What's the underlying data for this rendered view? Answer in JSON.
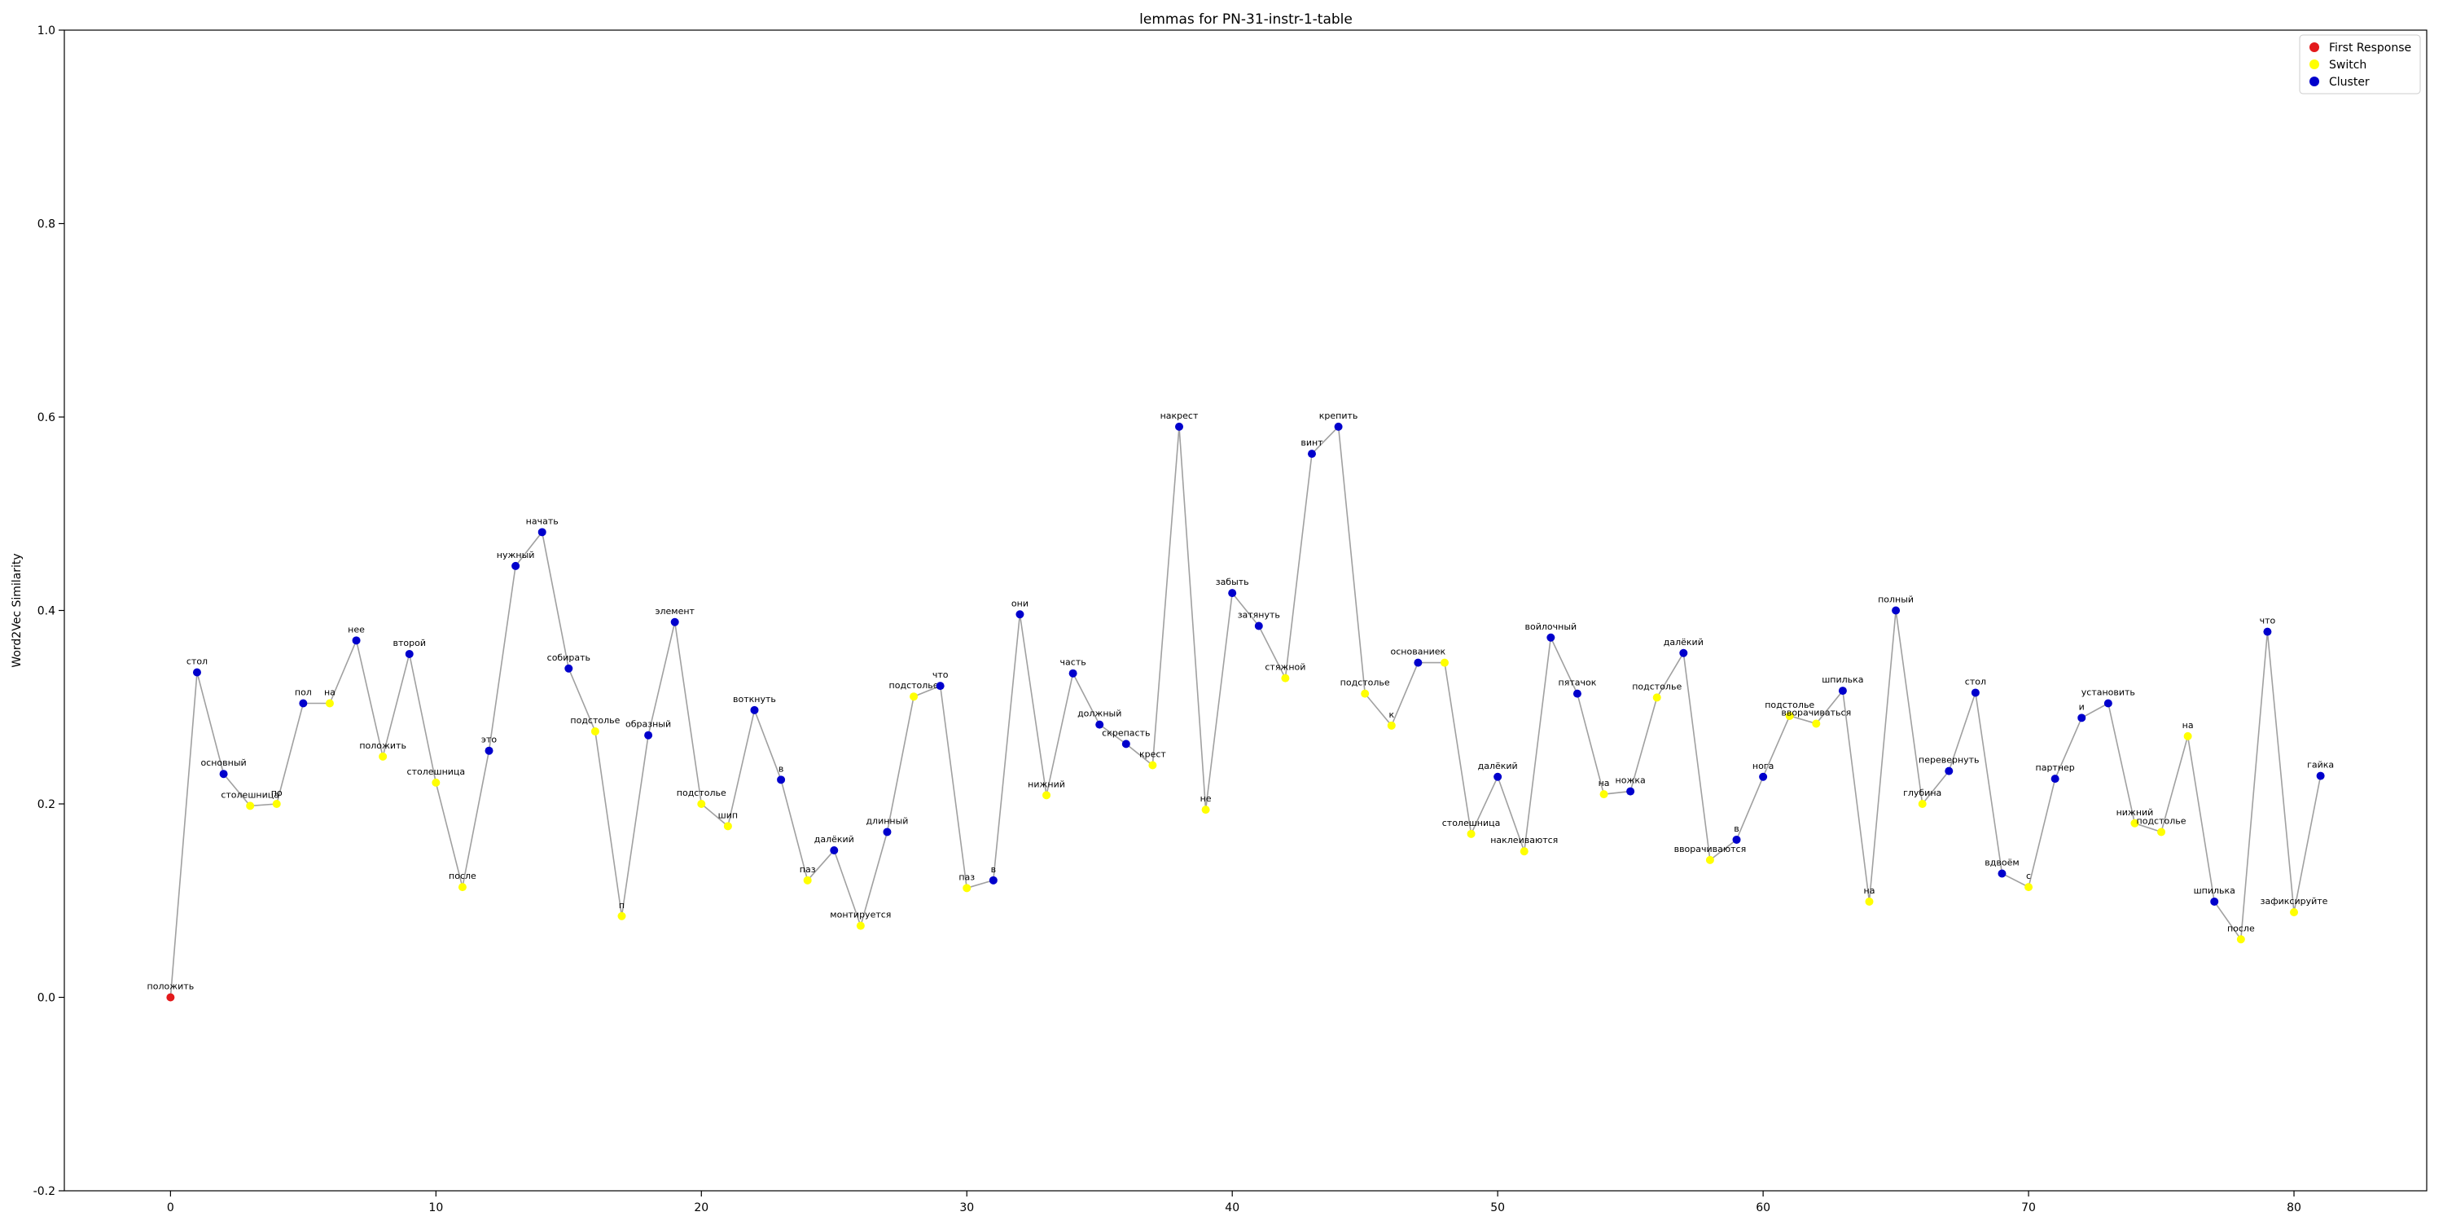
{
  "chart_data": {
    "type": "line",
    "title": "lemmas for PN-31-instr-1-table",
    "xlabel": "",
    "ylabel": "Word2Vec Similarity",
    "xlim": [
      -4,
      85
    ],
    "ylim": [
      -0.2,
      1.0
    ],
    "xticks": [
      0,
      10,
      20,
      30,
      40,
      50,
      60,
      70,
      80
    ],
    "yticks": [
      -0.2,
      0.0,
      0.2,
      0.4,
      0.6,
      0.8,
      1.0
    ],
    "grid": false,
    "line_color": "#a0a0a0",
    "legend": {
      "placement": "top-right",
      "items": [
        {
          "name": "First Response",
          "color": "#e31a1c"
        },
        {
          "name": "Switch",
          "color": "#ffff00"
        },
        {
          "name": "Cluster",
          "color": "#0000cc"
        }
      ]
    },
    "points": [
      {
        "x": 0,
        "y": 0.0,
        "label": "положить",
        "kind": "First Response"
      },
      {
        "x": 1,
        "y": 0.336,
        "label": "стол",
        "kind": "Cluster"
      },
      {
        "x": 2,
        "y": 0.231,
        "label": "основный",
        "kind": "Cluster"
      },
      {
        "x": 3,
        "y": 0.198,
        "label": "столешница",
        "kind": "Switch"
      },
      {
        "x": 4,
        "y": 0.2,
        "label": "по",
        "kind": "Switch"
      },
      {
        "x": 5,
        "y": 0.304,
        "label": "пол",
        "kind": "Cluster"
      },
      {
        "x": 6,
        "y": 0.304,
        "label": "на",
        "kind": "Switch"
      },
      {
        "x": 7,
        "y": 0.369,
        "label": "нее",
        "kind": "Cluster"
      },
      {
        "x": 8,
        "y": 0.249,
        "label": "положить",
        "kind": "Switch"
      },
      {
        "x": 9,
        "y": 0.355,
        "label": "второй",
        "kind": "Cluster"
      },
      {
        "x": 10,
        "y": 0.222,
        "label": "столешница",
        "kind": "Switch"
      },
      {
        "x": 11,
        "y": 0.114,
        "label": "после",
        "kind": "Switch"
      },
      {
        "x": 12,
        "y": 0.255,
        "label": "это",
        "kind": "Cluster"
      },
      {
        "x": 13,
        "y": 0.446,
        "label": "нужный",
        "kind": "Cluster"
      },
      {
        "x": 14,
        "y": 0.481,
        "label": "начать",
        "kind": "Cluster"
      },
      {
        "x": 15,
        "y": 0.34,
        "label": "собирать",
        "kind": "Cluster"
      },
      {
        "x": 16,
        "y": 0.275,
        "label": "подстолье",
        "kind": "Switch"
      },
      {
        "x": 17,
        "y": 0.084,
        "label": "п",
        "kind": "Switch"
      },
      {
        "x": 18,
        "y": 0.271,
        "label": "образный",
        "kind": "Cluster"
      },
      {
        "x": 19,
        "y": 0.388,
        "label": "элемент",
        "kind": "Cluster"
      },
      {
        "x": 20,
        "y": 0.2,
        "label": "подстолье",
        "kind": "Switch"
      },
      {
        "x": 21,
        "y": 0.177,
        "label": "шип",
        "kind": "Switch"
      },
      {
        "x": 22,
        "y": 0.297,
        "label": "воткнуть",
        "kind": "Cluster"
      },
      {
        "x": 23,
        "y": 0.225,
        "label": "в",
        "kind": "Cluster"
      },
      {
        "x": 24,
        "y": 0.121,
        "label": "паз",
        "kind": "Switch"
      },
      {
        "x": 25,
        "y": 0.152,
        "label": "далёкий",
        "kind": "Cluster"
      },
      {
        "x": 26,
        "y": 0.074,
        "label": "монтируется",
        "kind": "Switch"
      },
      {
        "x": 27,
        "y": 0.171,
        "label": "длинный",
        "kind": "Cluster"
      },
      {
        "x": 28,
        "y": 0.311,
        "label": "подстолье",
        "kind": "Switch"
      },
      {
        "x": 29,
        "y": 0.322,
        "label": "что",
        "kind": "Cluster"
      },
      {
        "x": 30,
        "y": 0.113,
        "label": "паз",
        "kind": "Switch"
      },
      {
        "x": 31,
        "y": 0.121,
        "label": "в",
        "kind": "Cluster"
      },
      {
        "x": 32,
        "y": 0.396,
        "label": "они",
        "kind": "Cluster"
      },
      {
        "x": 33,
        "y": 0.209,
        "label": "нижний",
        "kind": "Switch"
      },
      {
        "x": 34,
        "y": 0.335,
        "label": "часть",
        "kind": "Cluster"
      },
      {
        "x": 35,
        "y": 0.282,
        "label": "должный",
        "kind": "Cluster"
      },
      {
        "x": 36,
        "y": 0.262,
        "label": "скрепасть",
        "kind": "Cluster"
      },
      {
        "x": 37,
        "y": 0.24,
        "label": "крест",
        "kind": "Switch"
      },
      {
        "x": 38,
        "y": 0.59,
        "label": "накрест",
        "kind": "Cluster"
      },
      {
        "x": 39,
        "y": 0.194,
        "label": "не",
        "kind": "Switch"
      },
      {
        "x": 40,
        "y": 0.418,
        "label": "забыть",
        "kind": "Cluster"
      },
      {
        "x": 41,
        "y": 0.384,
        "label": "затянуть",
        "kind": "Cluster"
      },
      {
        "x": 42,
        "y": 0.33,
        "label": "стяжной",
        "kind": "Switch"
      },
      {
        "x": 43,
        "y": 0.562,
        "label": "винт",
        "kind": "Cluster"
      },
      {
        "x": 44,
        "y": 0.59,
        "label": "крепить",
        "kind": "Cluster"
      },
      {
        "x": 45,
        "y": 0.314,
        "label": "подстолье",
        "kind": "Switch"
      },
      {
        "x": 46,
        "y": 0.281,
        "label": "к",
        "kind": "Switch"
      },
      {
        "x": 47,
        "y": 0.346,
        "label": "основаниек",
        "kind": "Cluster"
      },
      {
        "x": 48,
        "y": 0.346,
        "label": "",
        "kind": "Switch"
      },
      {
        "x": 49,
        "y": 0.169,
        "label": "столешница",
        "kind": "Switch"
      },
      {
        "x": 50,
        "y": 0.228,
        "label": "далёкий",
        "kind": "Cluster"
      },
      {
        "x": 51,
        "y": 0.151,
        "label": "наклеиваются",
        "kind": "Switch"
      },
      {
        "x": 52,
        "y": 0.372,
        "label": "войлочный",
        "kind": "Cluster"
      },
      {
        "x": 53,
        "y": 0.314,
        "label": "пятачок",
        "kind": "Cluster"
      },
      {
        "x": 54,
        "y": 0.21,
        "label": "на",
        "kind": "Switch"
      },
      {
        "x": 55,
        "y": 0.213,
        "label": "ножка",
        "kind": "Cluster"
      },
      {
        "x": 56,
        "y": 0.31,
        "label": "подстолье",
        "kind": "Switch"
      },
      {
        "x": 57,
        "y": 0.356,
        "label": "далёкий",
        "kind": "Cluster"
      },
      {
        "x": 58,
        "y": 0.142,
        "label": "вворачиваются",
        "kind": "Switch"
      },
      {
        "x": 59,
        "y": 0.163,
        "label": "в",
        "kind": "Cluster"
      },
      {
        "x": 60,
        "y": 0.228,
        "label": "нога",
        "kind": "Cluster"
      },
      {
        "x": 61,
        "y": 0.291,
        "label": "подстолье",
        "kind": "Switch"
      },
      {
        "x": 62,
        "y": 0.283,
        "label": "вворачиваться",
        "kind": "Switch"
      },
      {
        "x": 63,
        "y": 0.317,
        "label": "шпилька",
        "kind": "Cluster"
      },
      {
        "x": 64,
        "y": 0.099,
        "label": "на",
        "kind": "Switch"
      },
      {
        "x": 65,
        "y": 0.4,
        "label": "полный",
        "kind": "Cluster"
      },
      {
        "x": 66,
        "y": 0.2,
        "label": "глубина",
        "kind": "Switch"
      },
      {
        "x": 67,
        "y": 0.234,
        "label": "перевернуть",
        "kind": "Cluster"
      },
      {
        "x": 68,
        "y": 0.315,
        "label": "стол",
        "kind": "Cluster"
      },
      {
        "x": 69,
        "y": 0.128,
        "label": "вдвоём",
        "kind": "Cluster"
      },
      {
        "x": 70,
        "y": 0.114,
        "label": "с",
        "kind": "Switch"
      },
      {
        "x": 71,
        "y": 0.226,
        "label": "партнер",
        "kind": "Cluster"
      },
      {
        "x": 72,
        "y": 0.289,
        "label": "и",
        "kind": "Cluster"
      },
      {
        "x": 73,
        "y": 0.304,
        "label": "установить",
        "kind": "Cluster"
      },
      {
        "x": 74,
        "y": 0.18,
        "label": "нижний",
        "kind": "Switch"
      },
      {
        "x": 75,
        "y": 0.171,
        "label": "подстолье",
        "kind": "Switch"
      },
      {
        "x": 76,
        "y": 0.27,
        "label": "на",
        "kind": "Switch"
      },
      {
        "x": 77,
        "y": 0.099,
        "label": "шпилька",
        "kind": "Cluster"
      },
      {
        "x": 78,
        "y": 0.06,
        "label": "после",
        "kind": "Switch"
      },
      {
        "x": 79,
        "y": 0.378,
        "label": "что",
        "kind": "Cluster"
      },
      {
        "x": 80,
        "y": 0.088,
        "label": "зафиксируйте",
        "kind": "Switch"
      },
      {
        "x": 81,
        "y": 0.229,
        "label": "гайка",
        "kind": "Cluster"
      }
    ]
  }
}
